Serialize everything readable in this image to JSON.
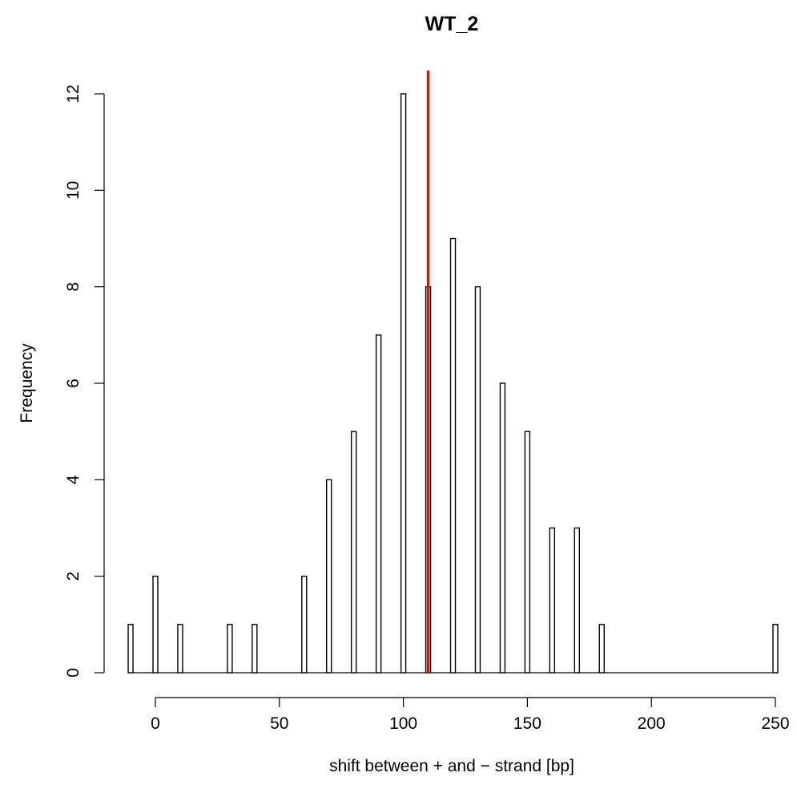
{
  "chart_data": {
    "type": "bar",
    "title": "WT_2",
    "xlabel": "shift between + and − strand [bp]",
    "ylabel": "Frequency",
    "xlim": [
      -10,
      250
    ],
    "ylim": [
      0,
      12.5
    ],
    "x_ticks": [
      0,
      50,
      100,
      150,
      200,
      250
    ],
    "x_tick_labels": [
      "0",
      "50",
      "100",
      "150",
      "200",
      "250"
    ],
    "y_ticks": [
      0,
      2,
      4,
      6,
      8,
      10,
      12
    ],
    "y_tick_labels": [
      "0",
      "2",
      "4",
      "6",
      "8",
      "10",
      "12"
    ],
    "grid": false,
    "legend": "none",
    "bars": [
      {
        "x": -10,
        "value": 1
      },
      {
        "x": 0,
        "value": 2
      },
      {
        "x": 10,
        "value": 1
      },
      {
        "x": 30,
        "value": 1
      },
      {
        "x": 40,
        "value": 1
      },
      {
        "x": 60,
        "value": 2
      },
      {
        "x": 70,
        "value": 4
      },
      {
        "x": 80,
        "value": 5
      },
      {
        "x": 90,
        "value": 7
      },
      {
        "x": 100,
        "value": 12
      },
      {
        "x": 110,
        "value": 8
      },
      {
        "x": 120,
        "value": 9
      },
      {
        "x": 130,
        "value": 8
      },
      {
        "x": 140,
        "value": 6
      },
      {
        "x": 150,
        "value": 5
      },
      {
        "x": 160,
        "value": 3
      },
      {
        "x": 170,
        "value": 3
      },
      {
        "x": 180,
        "value": 1
      },
      {
        "x": 250,
        "value": 1
      }
    ],
    "baseline_range": [
      -10,
      250
    ],
    "reference_line": {
      "x": 110,
      "color": "#dd1111"
    },
    "bar_fill": "#ffffff",
    "bar_stroke": "#000000"
  }
}
